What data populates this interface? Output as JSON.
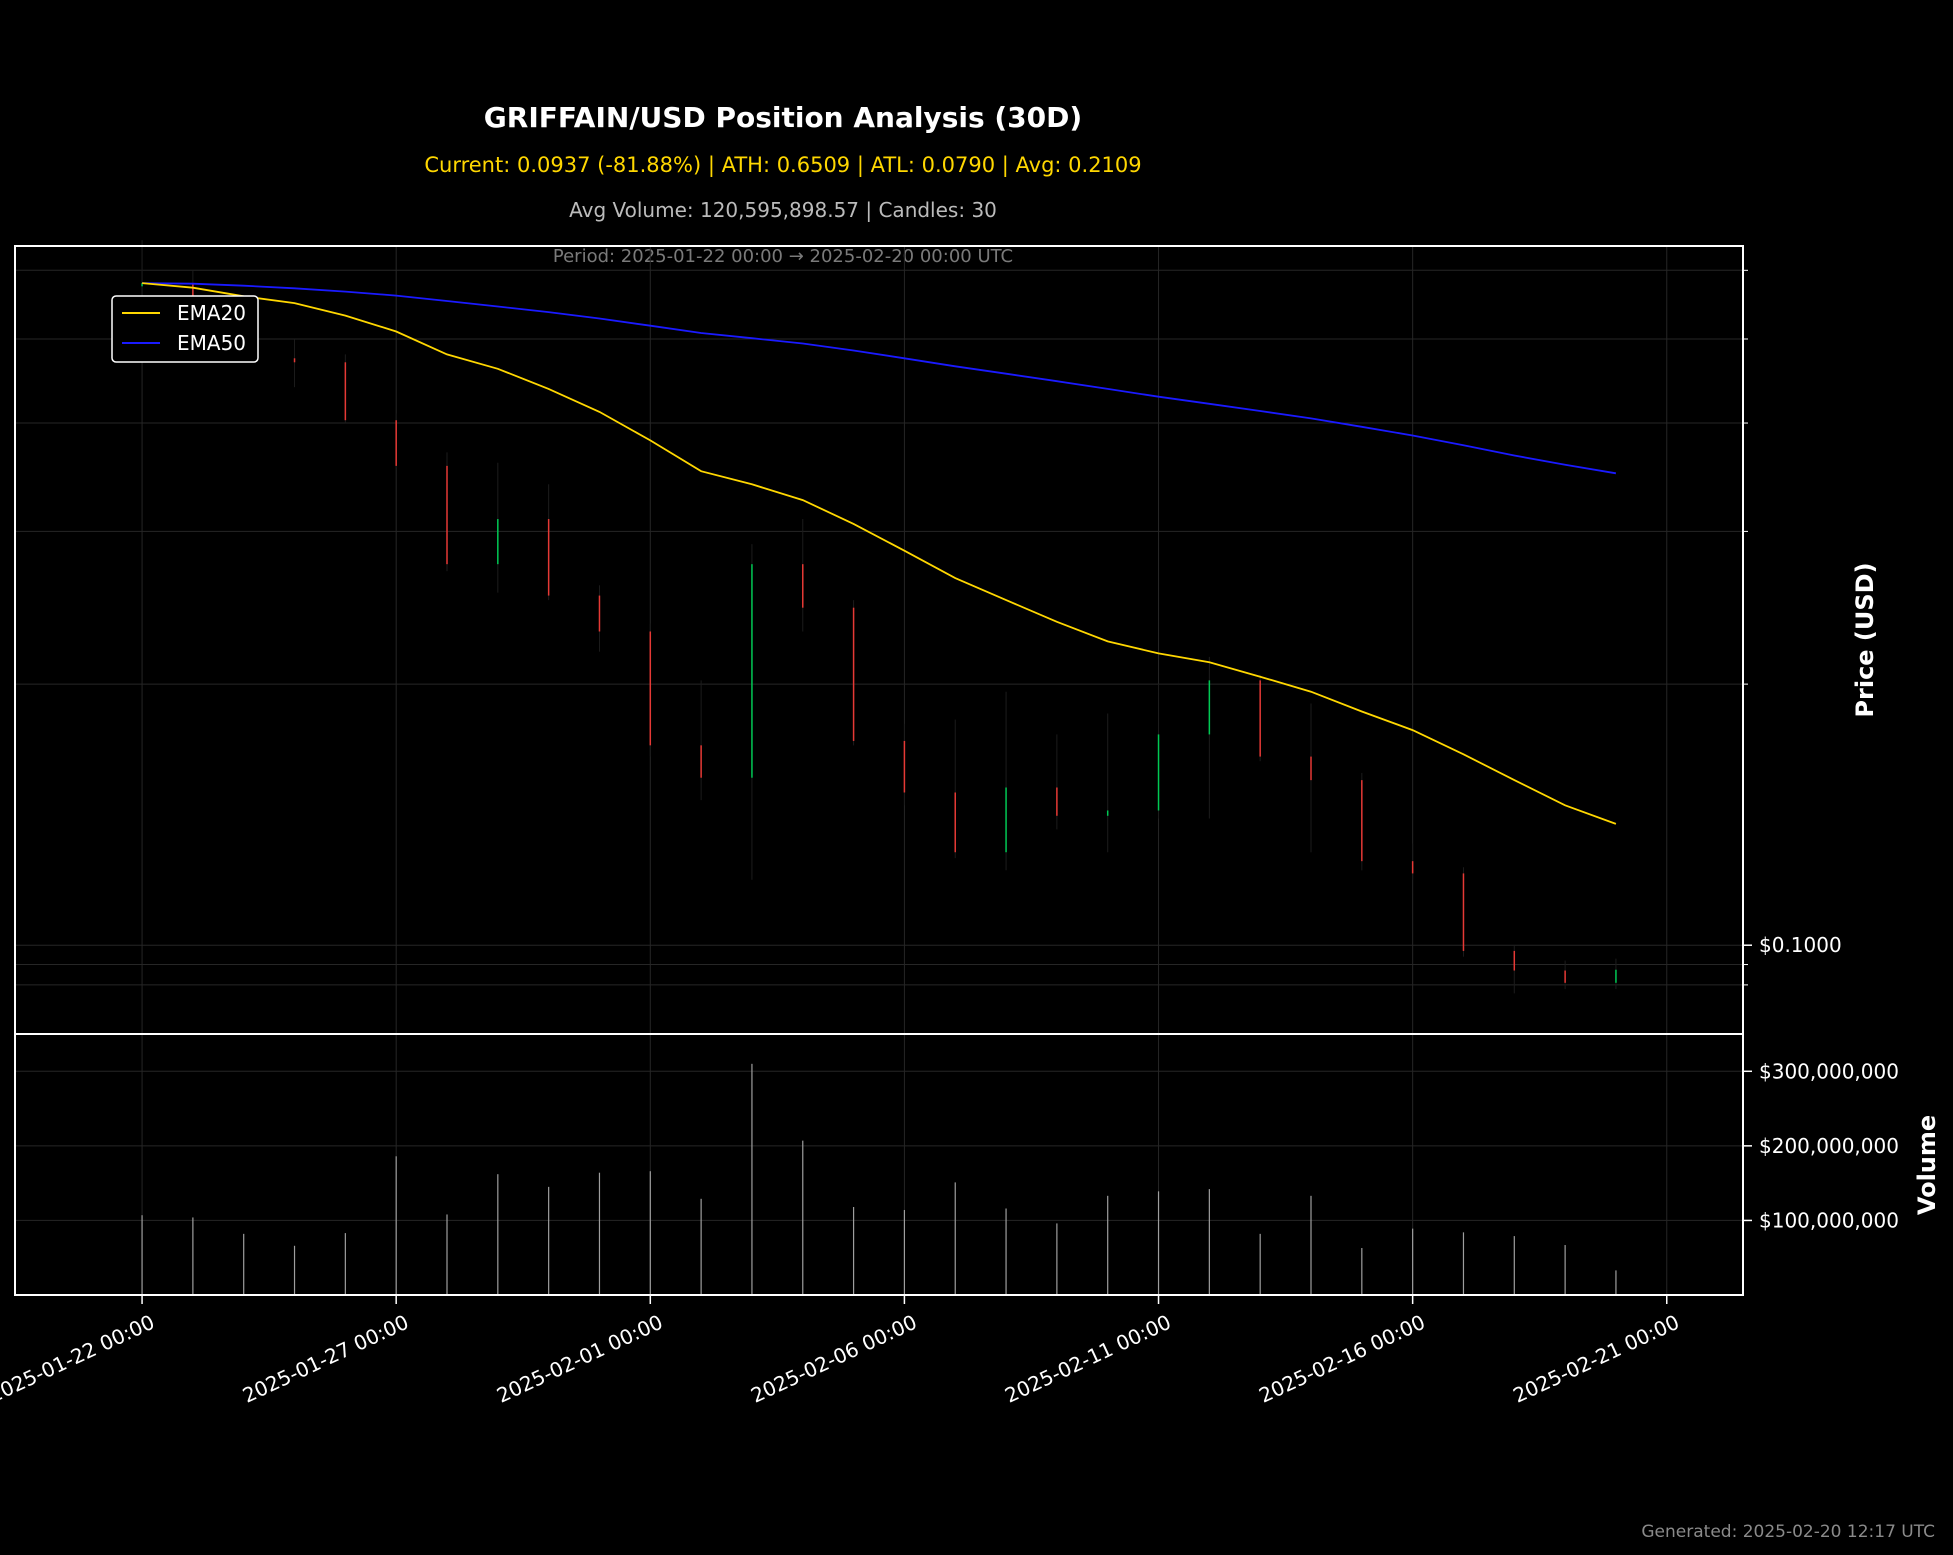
{
  "chart_data": {
    "type": "candlestick",
    "title": "GRIFFAIN/USD Position Analysis (30D)",
    "stats_line": "Current: 0.0937 (-81.88%) | ATH: 0.6509 | ATL: 0.0790 | Avg: 0.2109",
    "volume_line": "Avg Volume: 120,595,898.57 | Candles: 30",
    "period_line": "Period: 2025-01-22 00:00 → 2025-02-20 00:00 UTC",
    "footer": "Generated: 2025-02-20 12:17 UTC",
    "price_ylabel": "Price (USD)",
    "volume_ylabel": "Volume",
    "price_scale": "log",
    "price_ylim": [
      0.079,
      0.64
    ],
    "volume_ylim": [
      0,
      350000000
    ],
    "x_range": [
      -2.5,
      31.5
    ],
    "x_tick_labels": [
      "2025-01-22 00:00",
      "2025-01-27 00:00",
      "2025-02-01 00:00",
      "2025-02-06 00:00",
      "2025-02-11 00:00",
      "2025-02-16 00:00",
      "2025-02-21 00:00"
    ],
    "x_tick_positions": [
      0,
      5,
      10,
      15,
      20,
      25,
      30
    ],
    "price_tick_values": [
      0.1
    ],
    "price_tick_labels": [
      "$0.1000"
    ],
    "price_minor_ticks": [
      0.09,
      0.095,
      0.2,
      0.3,
      0.4,
      0.5,
      0.6
    ],
    "volume_tick_values": [
      100000000,
      200000000,
      300000000
    ],
    "volume_tick_labels": [
      "$100,000,000",
      "$200,000,000",
      "$300,000,000"
    ],
    "legend": [
      {
        "label": "EMA20",
        "color": "#ffd700"
      },
      {
        "label": "EMA50",
        "color": "#1a1aff"
      }
    ],
    "colors": {
      "up": "#00c853",
      "down": "#e53935",
      "volume": "#9e9e9e",
      "frame": "#ffffff",
      "grid": "#262626"
    },
    "candles": [
      {
        "o": 0.575,
        "h": 0.65,
        "l": 0.555,
        "c": 0.58
      },
      {
        "o": 0.58,
        "h": 0.6,
        "l": 0.52,
        "c": 0.545
      },
      {
        "o": 0.545,
        "h": 0.56,
        "l": 0.47,
        "c": 0.475
      },
      {
        "o": 0.475,
        "h": 0.5,
        "l": 0.44,
        "c": 0.47
      },
      {
        "o": 0.47,
        "h": 0.48,
        "l": 0.4,
        "c": 0.403
      },
      {
        "o": 0.403,
        "h": 0.41,
        "l": 0.355,
        "c": 0.357
      },
      {
        "o": 0.357,
        "h": 0.37,
        "l": 0.27,
        "c": 0.275
      },
      {
        "o": 0.275,
        "h": 0.36,
        "l": 0.255,
        "c": 0.31
      },
      {
        "o": 0.31,
        "h": 0.34,
        "l": 0.25,
        "c": 0.253
      },
      {
        "o": 0.253,
        "h": 0.26,
        "l": 0.218,
        "c": 0.23
      },
      {
        "o": 0.23,
        "h": 0.235,
        "l": 0.165,
        "c": 0.17
      },
      {
        "o": 0.17,
        "h": 0.202,
        "l": 0.147,
        "c": 0.156
      },
      {
        "o": 0.156,
        "h": 0.29,
        "l": 0.119,
        "c": 0.275
      },
      {
        "o": 0.275,
        "h": 0.31,
        "l": 0.23,
        "c": 0.245
      },
      {
        "o": 0.245,
        "h": 0.25,
        "l": 0.17,
        "c": 0.172
      },
      {
        "o": 0.172,
        "h": 0.18,
        "l": 0.145,
        "c": 0.15
      },
      {
        "o": 0.15,
        "h": 0.182,
        "l": 0.126,
        "c": 0.128
      },
      {
        "o": 0.128,
        "h": 0.196,
        "l": 0.122,
        "c": 0.152
      },
      {
        "o": 0.152,
        "h": 0.175,
        "l": 0.136,
        "c": 0.141
      },
      {
        "o": 0.141,
        "h": 0.185,
        "l": 0.128,
        "c": 0.143
      },
      {
        "o": 0.143,
        "h": 0.2,
        "l": 0.14,
        "c": 0.175
      },
      {
        "o": 0.175,
        "h": 0.215,
        "l": 0.14,
        "c": 0.202
      },
      {
        "o": 0.202,
        "h": 0.205,
        "l": 0.163,
        "c": 0.165
      },
      {
        "o": 0.165,
        "h": 0.19,
        "l": 0.128,
        "c": 0.155
      },
      {
        "o": 0.155,
        "h": 0.158,
        "l": 0.122,
        "c": 0.125
      },
      {
        "o": 0.125,
        "h": 0.131,
        "l": 0.119,
        "c": 0.121
      },
      {
        "o": 0.121,
        "h": 0.123,
        "l": 0.097,
        "c": 0.0985
      },
      {
        "o": 0.0985,
        "h": 0.1,
        "l": 0.088,
        "c": 0.0935
      },
      {
        "o": 0.0935,
        "h": 0.096,
        "l": 0.089,
        "c": 0.0905
      },
      {
        "o": 0.0905,
        "h": 0.0965,
        "l": 0.089,
        "c": 0.0937
      }
    ],
    "volume": [
      107000000,
      104000000,
      82000000,
      66000000,
      83000000,
      186000000,
      108000000,
      162000000,
      145000000,
      164000000,
      166000000,
      129000000,
      310000000,
      207000000,
      118000000,
      114000000,
      151000000,
      116000000,
      96000000,
      133000000,
      139000000,
      142000000,
      82000000,
      133000000,
      63000000,
      89000000,
      84000000,
      79000000,
      67000000,
      33000000
    ],
    "ema20": [
      0.58,
      0.573,
      0.56,
      0.55,
      0.532,
      0.51,
      0.48,
      0.462,
      0.438,
      0.412,
      0.382,
      0.352,
      0.34,
      0.326,
      0.306,
      0.285,
      0.265,
      0.25,
      0.236,
      0.224,
      0.217,
      0.212,
      0.204,
      0.196,
      0.186,
      0.177,
      0.166,
      0.155,
      0.145,
      0.138
    ],
    "ema50": [
      0.58,
      0.579,
      0.576,
      0.572,
      0.567,
      0.561,
      0.553,
      0.545,
      0.537,
      0.528,
      0.518,
      0.508,
      0.501,
      0.494,
      0.485,
      0.475,
      0.465,
      0.456,
      0.447,
      0.438,
      0.429,
      0.421,
      0.413,
      0.405,
      0.396,
      0.387,
      0.377,
      0.367,
      0.358,
      0.35
    ]
  }
}
